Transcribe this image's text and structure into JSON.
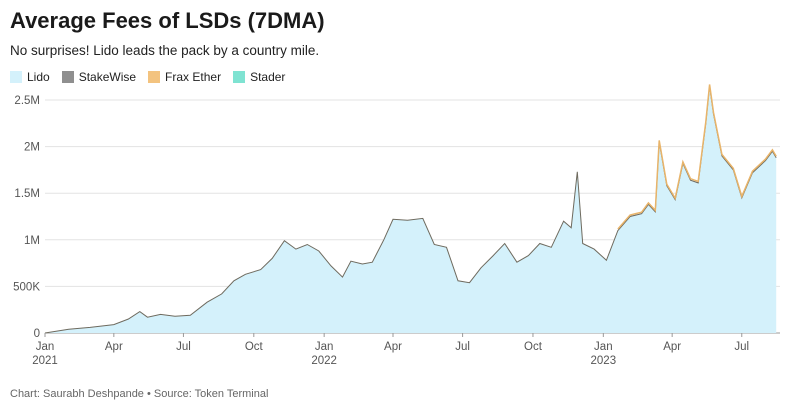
{
  "header": {
    "title": "Average Fees of LSDs (7DMA)",
    "subtitle": "No surprises! Lido leads the pack by a country mile."
  },
  "legend": [
    {
      "label": "Lido",
      "color": "#d4f1fb"
    },
    {
      "label": "StakeWise",
      "color": "#8f8f8f"
    },
    {
      "label": "Frax Ether",
      "color": "#f3c37f"
    },
    {
      "label": "Stader",
      "color": "#7fe3d2"
    }
  ],
  "footer": {
    "credit": "Chart: Saurabh Deshpande • Source: Token Terminal"
  },
  "chart_data": {
    "type": "area",
    "title": "Average Fees of LSDs (7DMA)",
    "ylim": [
      0,
      2500000
    ],
    "y_ticks": [
      {
        "value": 0,
        "label": "0"
      },
      {
        "value": 500000,
        "label": "500K"
      },
      {
        "value": 1000000,
        "label": "1M"
      },
      {
        "value": 1500000,
        "label": "1.5M"
      },
      {
        "value": 2000000,
        "label": "2M"
      },
      {
        "value": 2500000,
        "label": "2.5M"
      }
    ],
    "x_ticks": [
      {
        "date": "2021-01-01",
        "label": "Jan",
        "year": "2021"
      },
      {
        "date": "2021-04-01",
        "label": "Apr",
        "year": ""
      },
      {
        "date": "2021-07-01",
        "label": "Jul",
        "year": ""
      },
      {
        "date": "2021-10-01",
        "label": "Oct",
        "year": ""
      },
      {
        "date": "2022-01-01",
        "label": "Jan",
        "year": "2022"
      },
      {
        "date": "2022-04-01",
        "label": "Apr",
        "year": ""
      },
      {
        "date": "2022-07-01",
        "label": "Jul",
        "year": ""
      },
      {
        "date": "2022-10-01",
        "label": "Oct",
        "year": ""
      },
      {
        "date": "2023-01-01",
        "label": "Jan",
        "year": "2023"
      },
      {
        "date": "2023-04-01",
        "label": "Apr",
        "year": ""
      },
      {
        "date": "2023-07-01",
        "label": "Jul",
        "year": ""
      }
    ],
    "series": [
      {
        "name": "Lido",
        "color": "#d4f1fb",
        "points": [
          [
            "2021-01-01",
            0
          ],
          [
            "2021-02-01",
            40000
          ],
          [
            "2021-03-01",
            60000
          ],
          [
            "2021-04-01",
            90000
          ],
          [
            "2021-04-20",
            150000
          ],
          [
            "2021-05-05",
            230000
          ],
          [
            "2021-05-15",
            170000
          ],
          [
            "2021-06-01",
            200000
          ],
          [
            "2021-06-20",
            180000
          ],
          [
            "2021-07-10",
            190000
          ],
          [
            "2021-08-01",
            330000
          ],
          [
            "2021-08-20",
            420000
          ],
          [
            "2021-09-05",
            560000
          ],
          [
            "2021-09-20",
            630000
          ],
          [
            "2021-10-10",
            680000
          ],
          [
            "2021-10-25",
            800000
          ],
          [
            "2021-11-10",
            990000
          ],
          [
            "2021-11-25",
            900000
          ],
          [
            "2021-12-10",
            950000
          ],
          [
            "2021-12-25",
            880000
          ],
          [
            "2022-01-10",
            720000
          ],
          [
            "2022-01-25",
            600000
          ],
          [
            "2022-02-05",
            770000
          ],
          [
            "2022-02-20",
            740000
          ],
          [
            "2022-03-05",
            760000
          ],
          [
            "2022-03-20",
            1000000
          ],
          [
            "2022-04-01",
            1220000
          ],
          [
            "2022-04-20",
            1210000
          ],
          [
            "2022-05-10",
            1230000
          ],
          [
            "2022-05-25",
            950000
          ],
          [
            "2022-06-10",
            920000
          ],
          [
            "2022-06-25",
            560000
          ],
          [
            "2022-07-10",
            540000
          ],
          [
            "2022-07-25",
            700000
          ],
          [
            "2022-08-10",
            830000
          ],
          [
            "2022-08-25",
            960000
          ],
          [
            "2022-09-10",
            760000
          ],
          [
            "2022-09-25",
            830000
          ],
          [
            "2022-10-10",
            960000
          ],
          [
            "2022-10-25",
            920000
          ],
          [
            "2022-11-10",
            1200000
          ],
          [
            "2022-11-20",
            1130000
          ],
          [
            "2022-11-28",
            1730000
          ],
          [
            "2022-12-05",
            960000
          ],
          [
            "2022-12-20",
            900000
          ],
          [
            "2023-01-05",
            780000
          ],
          [
            "2023-01-20",
            1100000
          ],
          [
            "2023-02-05",
            1250000
          ],
          [
            "2023-02-20",
            1280000
          ],
          [
            "2023-03-01",
            1380000
          ],
          [
            "2023-03-10",
            1300000
          ],
          [
            "2023-03-15",
            2050000
          ],
          [
            "2023-03-25",
            1580000
          ],
          [
            "2023-04-05",
            1430000
          ],
          [
            "2023-04-15",
            1820000
          ],
          [
            "2023-04-25",
            1640000
          ],
          [
            "2023-05-05",
            1610000
          ],
          [
            "2023-05-15",
            2250000
          ],
          [
            "2023-05-20",
            2650000
          ],
          [
            "2023-05-25",
            2350000
          ],
          [
            "2023-06-05",
            1900000
          ],
          [
            "2023-06-20",
            1750000
          ],
          [
            "2023-07-01",
            1450000
          ],
          [
            "2023-07-15",
            1720000
          ],
          [
            "2023-08-01",
            1850000
          ],
          [
            "2023-08-10",
            1950000
          ],
          [
            "2023-08-15",
            1880000
          ]
        ]
      }
    ]
  }
}
